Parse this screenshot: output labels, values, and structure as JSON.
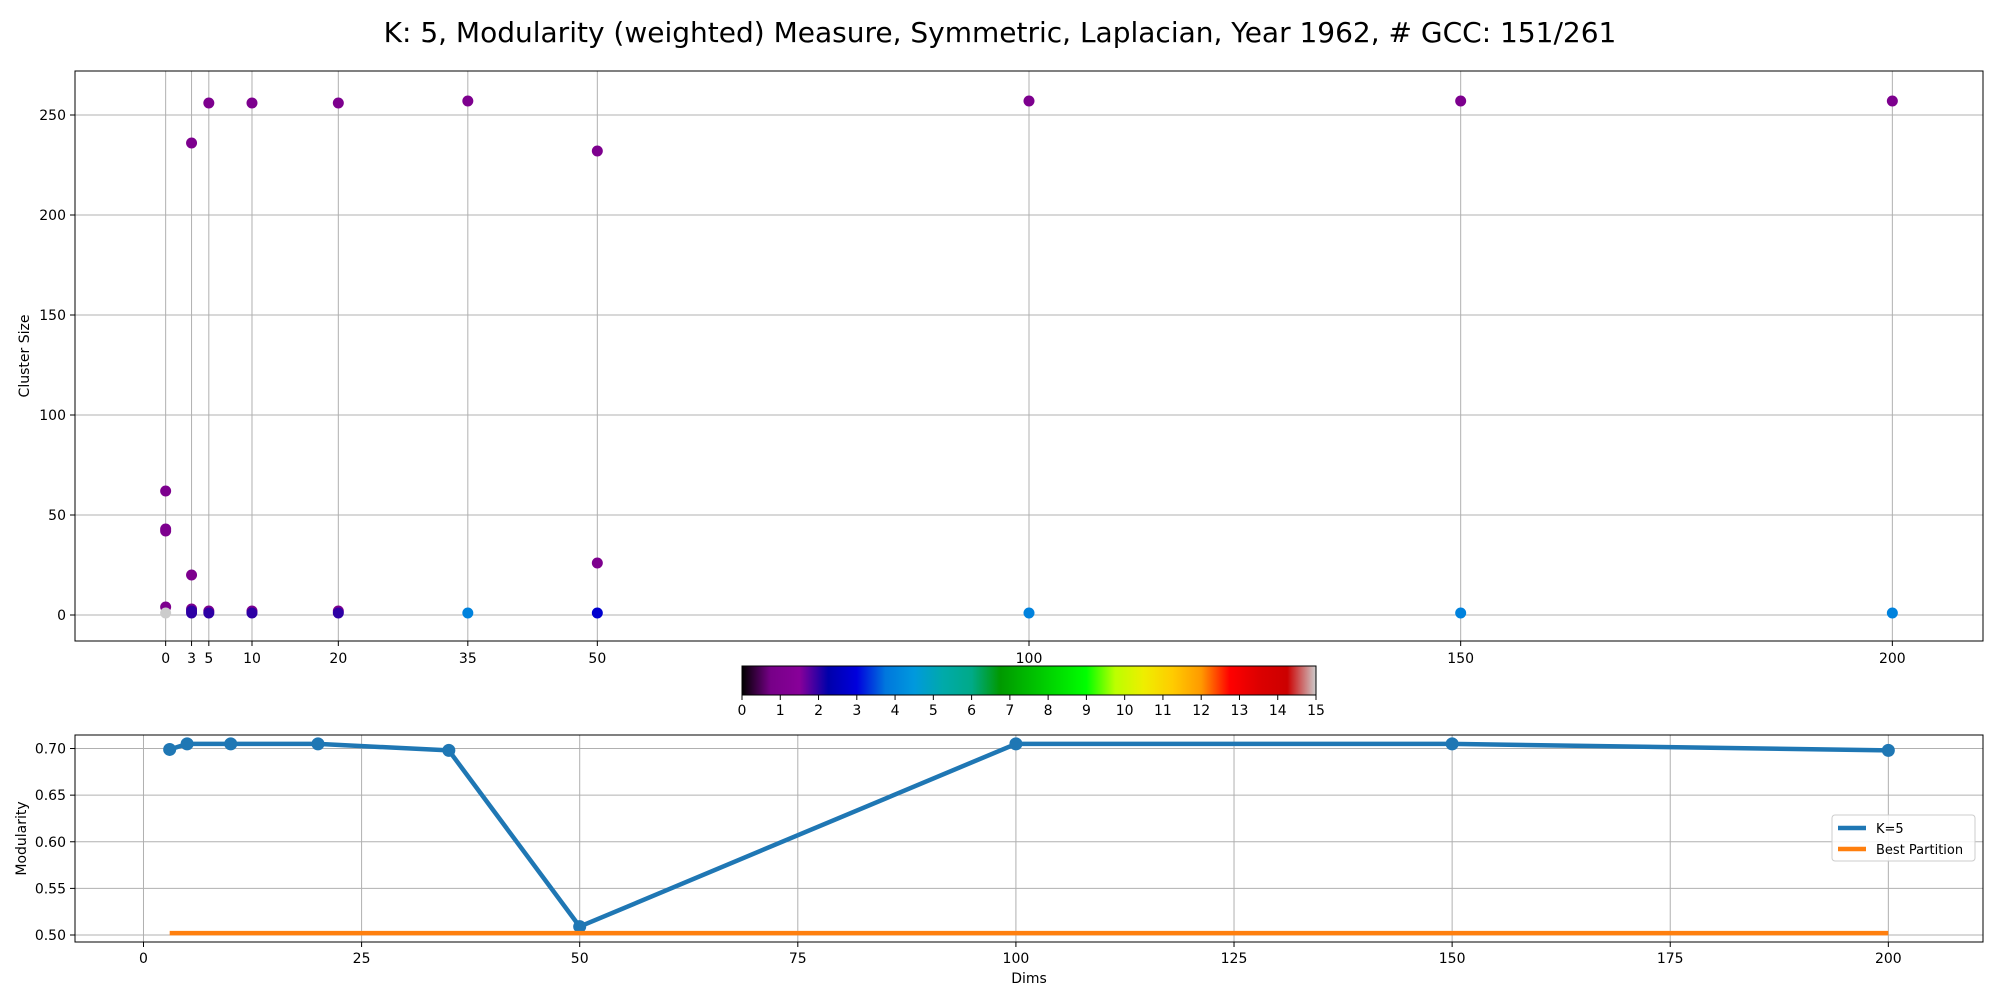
{
  "figure": {
    "title": "K: 5, Modularity (weighted) Measure, Symmetric, Laplacian, Year 1962, # GCC: 151/261"
  },
  "chart_data": [
    {
      "type": "scatter",
      "ylabel": "Cluster Size",
      "xlabel": "",
      "x_ticks": [
        0,
        3,
        5,
        10,
        20,
        35,
        50,
        100,
        150,
        200
      ],
      "y_ticks": [
        0,
        50,
        100,
        150,
        200,
        250
      ],
      "xlim": [
        -10.5,
        210.5
      ],
      "ylim": [
        -13,
        272
      ],
      "grid": true,
      "color_scale": "nipy_spectral, cluster index 0-15",
      "points": [
        {
          "x": 0,
          "y": 62,
          "c": 1
        },
        {
          "x": 0,
          "y": 43,
          "c": 1
        },
        {
          "x": 0,
          "y": 42,
          "c": 1
        },
        {
          "x": 0,
          "y": 4,
          "c": 1
        },
        {
          "x": 0,
          "y": 1,
          "c": 15
        },
        {
          "x": 3,
          "y": 236,
          "c": 1
        },
        {
          "x": 3,
          "y": 20,
          "c": 1
        },
        {
          "x": 3,
          "y": 3,
          "c": 1
        },
        {
          "x": 3,
          "y": 2,
          "c": 2
        },
        {
          "x": 3,
          "y": 1,
          "c": 2
        },
        {
          "x": 5,
          "y": 256,
          "c": 1
        },
        {
          "x": 5,
          "y": 2,
          "c": 1
        },
        {
          "x": 5,
          "y": 1,
          "c": 2
        },
        {
          "x": 10,
          "y": 256,
          "c": 1
        },
        {
          "x": 10,
          "y": 2,
          "c": 1
        },
        {
          "x": 10,
          "y": 1,
          "c": 2
        },
        {
          "x": 20,
          "y": 256,
          "c": 1
        },
        {
          "x": 20,
          "y": 2,
          "c": 1
        },
        {
          "x": 20,
          "y": 1,
          "c": 2
        },
        {
          "x": 35,
          "y": 257,
          "c": 1
        },
        {
          "x": 35,
          "y": 1,
          "c": 4
        },
        {
          "x": 50,
          "y": 232,
          "c": 1
        },
        {
          "x": 50,
          "y": 26,
          "c": 1
        },
        {
          "x": 50,
          "y": 1,
          "c": 2.8
        },
        {
          "x": 100,
          "y": 257,
          "c": 1
        },
        {
          "x": 100,
          "y": 1,
          "c": 4
        },
        {
          "x": 150,
          "y": 257,
          "c": 1
        },
        {
          "x": 150,
          "y": 1,
          "c": 4
        },
        {
          "x": 200,
          "y": 257,
          "c": 1
        },
        {
          "x": 200,
          "y": 1,
          "c": 4
        }
      ]
    },
    {
      "type": "colorbar",
      "range": [
        0,
        15
      ],
      "ticks": [
        0,
        1,
        2,
        3,
        4,
        5,
        6,
        7,
        8,
        9,
        10,
        11,
        12,
        13,
        14,
        15
      ]
    },
    {
      "type": "line",
      "xlabel": "Dims",
      "ylabel": "Modularity",
      "x_ticks": [
        0,
        25,
        50,
        75,
        100,
        125,
        150,
        175,
        200
      ],
      "y_ticks": [
        "0.50",
        "0.55",
        "0.60",
        "0.65",
        "0.70"
      ],
      "xlim": [
        -7.85,
        210.85
      ],
      "ylim": [
        0.4925,
        0.7145
      ],
      "grid": true,
      "legend_position": "center-right",
      "series": [
        {
          "name": "K=5",
          "color": "#1f77b4",
          "x": [
            3,
            5,
            10,
            20,
            35,
            50,
            100,
            150,
            200
          ],
          "y": [
            0.699,
            0.705,
            0.705,
            0.705,
            0.698,
            0.509,
            0.705,
            0.705,
            0.698
          ],
          "markers": true
        },
        {
          "name": "Best Partition",
          "color": "#ff7f0e",
          "x": [
            3,
            200
          ],
          "y": [
            0.502,
            0.502
          ],
          "markers": false
        }
      ]
    }
  ]
}
